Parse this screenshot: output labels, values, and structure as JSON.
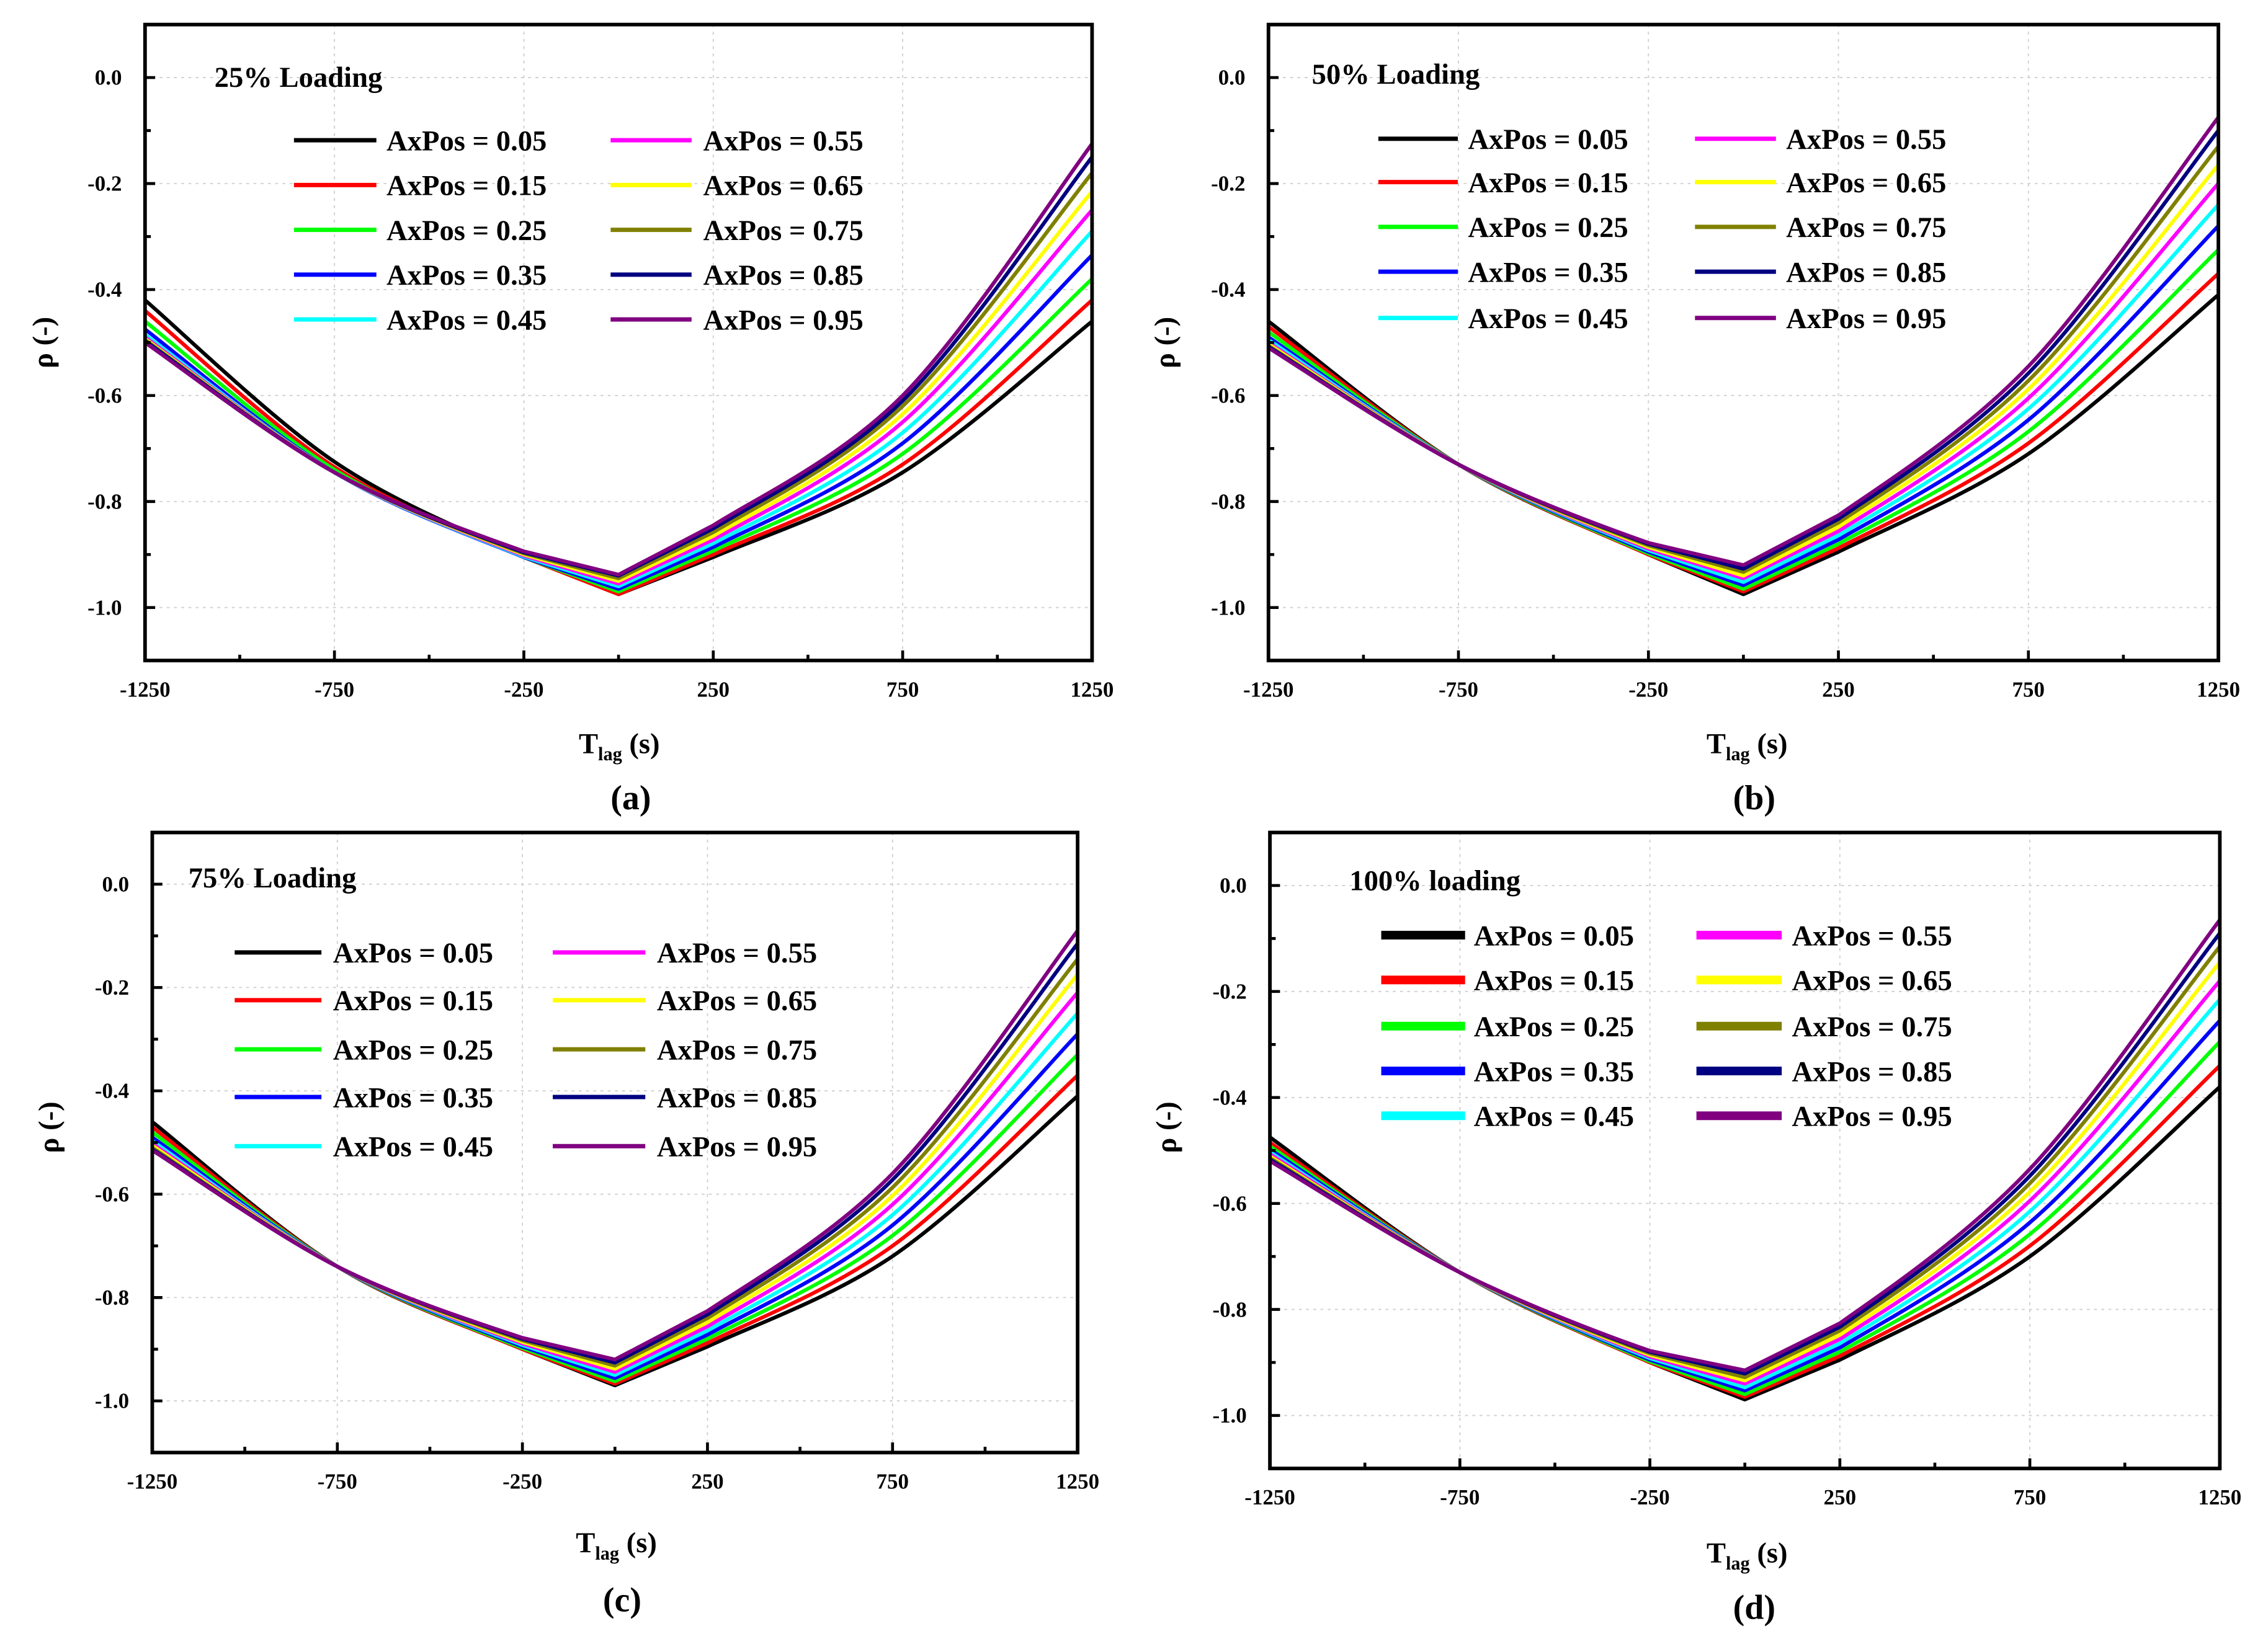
{
  "chart_data": [
    {
      "type": "line",
      "panel_label": "(a)",
      "title": "25% Loading",
      "xlabel_main": "T",
      "xlabel_sub": "lag",
      "xlabel_unit": " (s)",
      "ylabel": "ρ (-)",
      "xlim": [
        -1250,
        1250
      ],
      "ylim": [
        -1.1,
        0.1
      ],
      "xticks": [
        "-1250",
        "-750",
        "-250",
        "250",
        "750",
        "1250"
      ],
      "yticks": [
        "0.0",
        "-0.2",
        "-0.4",
        "-0.6",
        "-0.8",
        "-1.0"
      ],
      "grid": true,
      "legend_position": "top-center",
      "x": [
        -1250,
        -750,
        -250,
        0,
        250,
        750,
        1250
      ],
      "series": [
        {
          "name": "AxPos = 0.05",
          "color": "#000000",
          "values": [
            -0.42,
            -0.725,
            -0.905,
            -0.975,
            -0.905,
            -0.745,
            -0.46
          ]
        },
        {
          "name": "AxPos = 0.15",
          "color": "#ff0000",
          "values": [
            -0.44,
            -0.735,
            -0.905,
            -0.975,
            -0.9,
            -0.73,
            -0.42
          ]
        },
        {
          "name": "AxPos = 0.25",
          "color": "#00ff00",
          "values": [
            -0.46,
            -0.74,
            -0.905,
            -0.97,
            -0.893,
            -0.71,
            -0.38
          ]
        },
        {
          "name": "AxPos = 0.35",
          "color": "#0000ff",
          "values": [
            -0.475,
            -0.745,
            -0.905,
            -0.965,
            -0.886,
            -0.69,
            -0.335
          ]
        },
        {
          "name": "AxPos = 0.45",
          "color": "#00ffff",
          "values": [
            -0.485,
            -0.745,
            -0.904,
            -0.96,
            -0.879,
            -0.67,
            -0.29
          ]
        },
        {
          "name": "AxPos = 0.55",
          "color": "#ff00ff",
          "values": [
            -0.49,
            -0.745,
            -0.902,
            -0.955,
            -0.872,
            -0.65,
            -0.25
          ]
        },
        {
          "name": "AxPos = 0.65",
          "color": "#ffff00",
          "values": [
            -0.493,
            -0.745,
            -0.9,
            -0.95,
            -0.865,
            -0.635,
            -0.215
          ]
        },
        {
          "name": "AxPos = 0.75",
          "color": "#808000",
          "values": [
            -0.495,
            -0.745,
            -0.898,
            -0.945,
            -0.858,
            -0.62,
            -0.18
          ]
        },
        {
          "name": "AxPos = 0.85",
          "color": "#000080",
          "values": [
            -0.497,
            -0.745,
            -0.896,
            -0.94,
            -0.851,
            -0.61,
            -0.15
          ]
        },
        {
          "name": "AxPos = 0.95",
          "color": "#800080",
          "values": [
            -0.5,
            -0.745,
            -0.894,
            -0.938,
            -0.845,
            -0.6,
            -0.125
          ]
        }
      ]
    },
    {
      "type": "line",
      "panel_label": "(b)",
      "title": "50% Loading",
      "xlabel_main": "T",
      "xlabel_sub": "lag",
      "xlabel_unit": " (s)",
      "ylabel": "ρ (-)",
      "xlim": [
        -1250,
        1250
      ],
      "ylim": [
        -1.1,
        0.1
      ],
      "xticks": [
        "-1250",
        "-750",
        "-250",
        "250",
        "750",
        "1250"
      ],
      "yticks": [
        "0.0",
        "-0.2",
        "-0.4",
        "-0.6",
        "-0.8",
        "-1.0"
      ],
      "grid": true,
      "legend_position": "top-center",
      "x": [
        -1250,
        -750,
        -250,
        0,
        250,
        750,
        1250
      ],
      "series": [
        {
          "name": "AxPos = 0.05",
          "color": "#000000",
          "values": [
            -0.46,
            -0.73,
            -0.9,
            -0.975,
            -0.895,
            -0.71,
            -0.41
          ]
        },
        {
          "name": "AxPos = 0.15",
          "color": "#ff0000",
          "values": [
            -0.47,
            -0.73,
            -0.9,
            -0.97,
            -0.888,
            -0.69,
            -0.37
          ]
        },
        {
          "name": "AxPos = 0.25",
          "color": "#00ff00",
          "values": [
            -0.48,
            -0.73,
            -0.898,
            -0.965,
            -0.88,
            -0.668,
            -0.325
          ]
        },
        {
          "name": "AxPos = 0.35",
          "color": "#0000ff",
          "values": [
            -0.49,
            -0.73,
            -0.895,
            -0.958,
            -0.872,
            -0.646,
            -0.28
          ]
        },
        {
          "name": "AxPos = 0.45",
          "color": "#00ffff",
          "values": [
            -0.495,
            -0.73,
            -0.892,
            -0.952,
            -0.864,
            -0.625,
            -0.24
          ]
        },
        {
          "name": "AxPos = 0.55",
          "color": "#ff00ff",
          "values": [
            -0.5,
            -0.73,
            -0.889,
            -0.945,
            -0.856,
            -0.605,
            -0.2
          ]
        },
        {
          "name": "AxPos = 0.65",
          "color": "#ffff00",
          "values": [
            -0.503,
            -0.73,
            -0.886,
            -0.94,
            -0.848,
            -0.588,
            -0.165
          ]
        },
        {
          "name": "AxPos = 0.75",
          "color": "#808000",
          "values": [
            -0.506,
            -0.73,
            -0.883,
            -0.933,
            -0.84,
            -0.572,
            -0.13
          ]
        },
        {
          "name": "AxPos = 0.85",
          "color": "#000080",
          "values": [
            -0.508,
            -0.73,
            -0.88,
            -0.927,
            -0.833,
            -0.558,
            -0.1
          ]
        },
        {
          "name": "AxPos = 0.95",
          "color": "#800080",
          "values": [
            -0.51,
            -0.73,
            -0.878,
            -0.92,
            -0.826,
            -0.545,
            -0.075
          ]
        }
      ]
    },
    {
      "type": "line",
      "panel_label": "(c)",
      "title": "75% Loading",
      "xlabel_main": "T",
      "xlabel_sub": "lag",
      "xlabel_unit": " (s)",
      "ylabel": "ρ (-)",
      "xlim": [
        -1250,
        1250
      ],
      "ylim": [
        -1.1,
        0.1
      ],
      "xticks": [
        "-1250",
        "-750",
        "-250",
        "250",
        "750",
        "1250"
      ],
      "yticks": [
        "0.0",
        "-0.2",
        "-0.4",
        "-0.6",
        "-0.8",
        "-1.0"
      ],
      "grid": true,
      "legend_position": "top-center",
      "x": [
        -1250,
        -750,
        -250,
        0,
        250,
        750,
        1250
      ],
      "series": [
        {
          "name": "AxPos = 0.05",
          "color": "#000000",
          "values": [
            -0.46,
            -0.74,
            -0.9,
            -0.97,
            -0.895,
            -0.72,
            -0.41
          ]
        },
        {
          "name": "AxPos = 0.15",
          "color": "#ff0000",
          "values": [
            -0.47,
            -0.74,
            -0.9,
            -0.967,
            -0.888,
            -0.7,
            -0.37
          ]
        },
        {
          "name": "AxPos = 0.25",
          "color": "#00ff00",
          "values": [
            -0.48,
            -0.74,
            -0.898,
            -0.962,
            -0.88,
            -0.68,
            -0.33
          ]
        },
        {
          "name": "AxPos = 0.35",
          "color": "#0000ff",
          "values": [
            -0.49,
            -0.74,
            -0.895,
            -0.956,
            -0.872,
            -0.66,
            -0.29
          ]
        },
        {
          "name": "AxPos = 0.45",
          "color": "#00ffff",
          "values": [
            -0.497,
            -0.74,
            -0.892,
            -0.95,
            -0.864,
            -0.64,
            -0.25
          ]
        },
        {
          "name": "AxPos = 0.55",
          "color": "#ff00ff",
          "values": [
            -0.502,
            -0.74,
            -0.889,
            -0.944,
            -0.856,
            -0.62,
            -0.21
          ]
        },
        {
          "name": "AxPos = 0.65",
          "color": "#ffff00",
          "values": [
            -0.506,
            -0.74,
            -0.886,
            -0.938,
            -0.848,
            -0.603,
            -0.175
          ]
        },
        {
          "name": "AxPos = 0.75",
          "color": "#808000",
          "values": [
            -0.51,
            -0.74,
            -0.883,
            -0.932,
            -0.84,
            -0.587,
            -0.145
          ]
        },
        {
          "name": "AxPos = 0.85",
          "color": "#000080",
          "values": [
            -0.513,
            -0.74,
            -0.88,
            -0.926,
            -0.833,
            -0.572,
            -0.115
          ]
        },
        {
          "name": "AxPos = 0.95",
          "color": "#800080",
          "values": [
            -0.515,
            -0.74,
            -0.878,
            -0.92,
            -0.826,
            -0.56,
            -0.09
          ]
        }
      ]
    },
    {
      "type": "line",
      "panel_label": "(d)",
      "title": "100% loading",
      "xlabel_main": "T",
      "xlabel_sub": "lag",
      "xlabel_unit": " (s)",
      "ylabel": "ρ (-)",
      "xlim": [
        -1250,
        1250
      ],
      "ylim": [
        -1.1,
        0.1
      ],
      "xticks": [
        "-1250",
        "-750",
        "-250",
        "250",
        "750",
        "1250"
      ],
      "yticks": [
        "0.0",
        "-0.2",
        "-0.4",
        "-0.6",
        "-0.8",
        "-1.0"
      ],
      "grid": true,
      "legend_position": "top-center",
      "x": [
        -1250,
        -750,
        -250,
        0,
        250,
        750,
        1250
      ],
      "series": [
        {
          "name": "AxPos = 0.05",
          "color": "#000000",
          "values": [
            -0.475,
            -0.73,
            -0.9,
            -0.97,
            -0.895,
            -0.7,
            -0.38
          ]
        },
        {
          "name": "AxPos = 0.15",
          "color": "#ff0000",
          "values": [
            -0.485,
            -0.73,
            -0.9,
            -0.965,
            -0.888,
            -0.68,
            -0.34
          ]
        },
        {
          "name": "AxPos = 0.25",
          "color": "#00ff00",
          "values": [
            -0.492,
            -0.73,
            -0.898,
            -0.96,
            -0.88,
            -0.658,
            -0.295
          ]
        },
        {
          "name": "AxPos = 0.35",
          "color": "#0000ff",
          "values": [
            -0.498,
            -0.73,
            -0.895,
            -0.953,
            -0.872,
            -0.636,
            -0.255
          ]
        },
        {
          "name": "AxPos = 0.45",
          "color": "#00ffff",
          "values": [
            -0.503,
            -0.73,
            -0.892,
            -0.947,
            -0.864,
            -0.615,
            -0.215
          ]
        },
        {
          "name": "AxPos = 0.55",
          "color": "#ff00ff",
          "values": [
            -0.507,
            -0.73,
            -0.889,
            -0.94,
            -0.856,
            -0.595,
            -0.18
          ]
        },
        {
          "name": "AxPos = 0.65",
          "color": "#ffff00",
          "values": [
            -0.511,
            -0.73,
            -0.886,
            -0.934,
            -0.848,
            -0.578,
            -0.145
          ]
        },
        {
          "name": "AxPos = 0.75",
          "color": "#808000",
          "values": [
            -0.514,
            -0.73,
            -0.883,
            -0.928,
            -0.84,
            -0.562,
            -0.115
          ]
        },
        {
          "name": "AxPos = 0.85",
          "color": "#000080",
          "values": [
            -0.517,
            -0.73,
            -0.88,
            -0.921,
            -0.833,
            -0.548,
            -0.09
          ]
        },
        {
          "name": "AxPos = 0.95",
          "color": "#800080",
          "values": [
            -0.52,
            -0.73,
            -0.878,
            -0.915,
            -0.826,
            -0.535,
            -0.065
          ]
        }
      ]
    }
  ]
}
